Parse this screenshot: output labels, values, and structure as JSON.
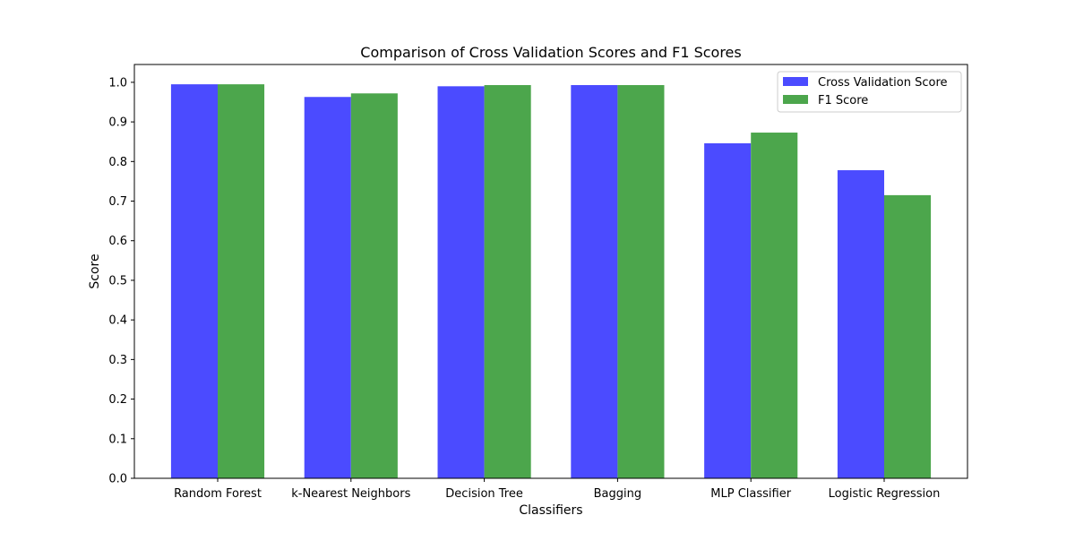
{
  "chart_data": {
    "type": "bar",
    "title": "Comparison of Cross Validation Scores and F1 Scores",
    "xlabel": "Classifiers",
    "ylabel": "Score",
    "categories": [
      "Random Forest",
      "k-Nearest Neighbors",
      "Decision Tree",
      "Bagging",
      "MLP Classifier",
      "Logistic Regression"
    ],
    "series": [
      {
        "name": "Cross Validation Score",
        "color": "#4b4bff",
        "values": [
          0.995,
          0.963,
          0.99,
          0.993,
          0.846,
          0.778
        ]
      },
      {
        "name": "F1 Score",
        "color": "#4ca64c",
        "values": [
          0.995,
          0.972,
          0.993,
          0.993,
          0.873,
          0.715
        ]
      }
    ],
    "ylim": [
      0,
      1.045
    ],
    "yticks": [
      0.0,
      0.1,
      0.2,
      0.3,
      0.4,
      0.5,
      0.6,
      0.7,
      0.8,
      0.9,
      1.0
    ],
    "ytick_labels": [
      "0.0",
      "0.1",
      "0.2",
      "0.3",
      "0.4",
      "0.5",
      "0.6",
      "0.7",
      "0.8",
      "0.9",
      "1.0"
    ],
    "grid": false,
    "legend_position": "top-right"
  }
}
